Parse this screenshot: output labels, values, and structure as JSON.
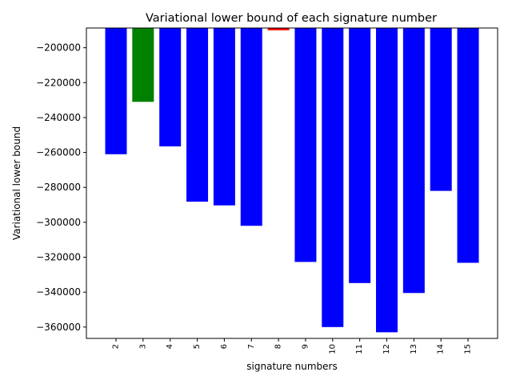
{
  "chart_data": {
    "type": "bar",
    "title": "Variational lower bound of each signature number",
    "xlabel": "signature numbers",
    "ylabel": "Variational lower bound",
    "categories": [
      "2",
      "3",
      "4",
      "5",
      "6",
      "7",
      "8",
      "9",
      "10",
      "11",
      "12",
      "13",
      "14",
      "15"
    ],
    "values": [
      -261000,
      -231000,
      -256500,
      -288200,
      -290300,
      -302000,
      -190000,
      -322700,
      -360000,
      -334800,
      -363000,
      -340500,
      -282000,
      -323200
    ],
    "bar_colors": [
      "#0000ff",
      "#008000",
      "#0000ff",
      "#0000ff",
      "#0000ff",
      "#0000ff",
      "#ff0000",
      "#0000ff",
      "#0000ff",
      "#0000ff",
      "#0000ff",
      "#0000ff",
      "#0000ff",
      "#0000ff"
    ],
    "ylim": [
      -366500,
      -188700
    ],
    "yticks": [
      -200000,
      -220000,
      -240000,
      -260000,
      -280000,
      -300000,
      -320000,
      -340000,
      -360000
    ],
    "ytick_labels": [
      "−200000",
      "−220000",
      "−240000",
      "−260000",
      "−280000",
      "−300000",
      "−320000",
      "−340000",
      "−360000"
    ],
    "grid": false,
    "legend": "none"
  }
}
